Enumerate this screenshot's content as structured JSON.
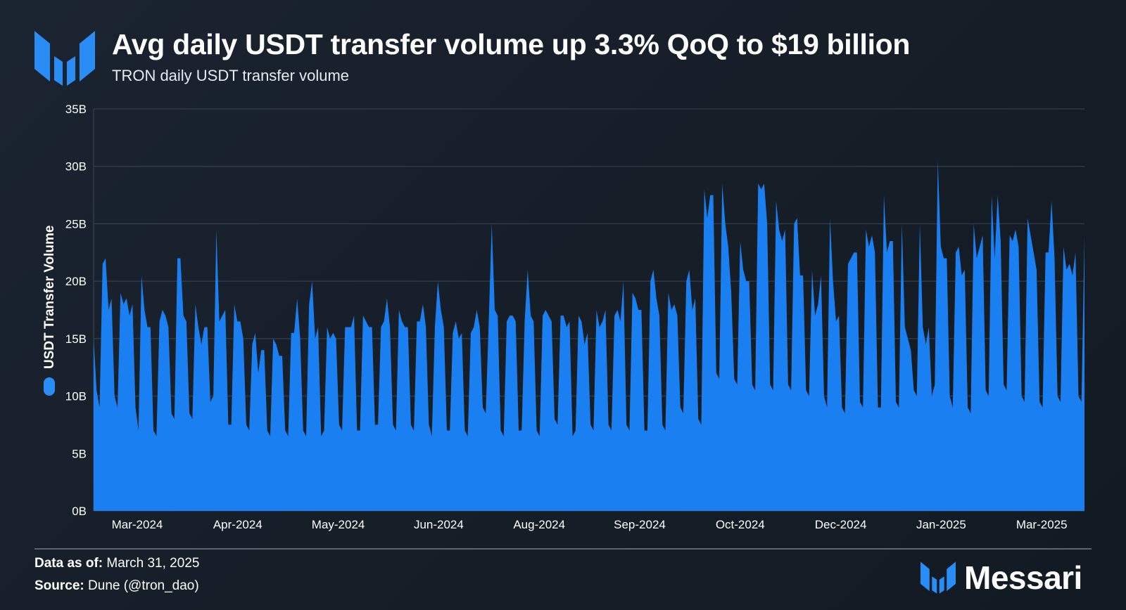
{
  "header": {
    "title": "Avg daily USDT transfer volume up 3.3% QoQ to $19 billion",
    "subtitle": "TRON daily USDT transfer volume"
  },
  "footer": {
    "data_as_of_label": "Data as of:",
    "data_as_of_value": "March 31, 2025",
    "source_label": "Source:",
    "source_value": "Dune (@tron_dao)",
    "brand": "Messari"
  },
  "colors": {
    "series": "#1a80f2",
    "grid": "#3a4654",
    "axis_text": "#ffffff",
    "logo": "#2a8cf5"
  },
  "icons": {
    "top_logo": "messari-logo-icon",
    "brand_logo": "messari-logo-icon"
  },
  "chart_data": {
    "type": "area",
    "title": "Avg daily USDT transfer volume up 3.3% QoQ to $19 billion",
    "subtitle": "TRON daily USDT transfer volume",
    "xlabel": "",
    "ylabel": "USDT Transfer Volume",
    "ylim": [
      0,
      35
    ],
    "y_unit": "B",
    "y_ticks": [
      "0B",
      "5B",
      "10B",
      "15B",
      "20B",
      "25B",
      "30B",
      "35B"
    ],
    "x_ticks": [
      "Mar-2024",
      "Apr-2024",
      "May-2024",
      "Jun-2024",
      "Aug-2024",
      "Sep-2024",
      "Oct-2024",
      "Dec-2024",
      "Jan-2025",
      "Mar-2025"
    ],
    "legend": [
      {
        "name": "USDT Transfer Volume",
        "position": "left-vertical"
      }
    ],
    "grid": true,
    "series": [
      {
        "name": "USDT Transfer Volume",
        "values": [
          15.0,
          10.5,
          9.0,
          21.5,
          22.0,
          17.5,
          18.5,
          10.0,
          9.0,
          19.0,
          18.0,
          18.5,
          17.0,
          18.0,
          9.0,
          7.0,
          20.5,
          17.5,
          16.0,
          16.0,
          7.0,
          6.5,
          16.5,
          17.5,
          17.0,
          16.0,
          8.5,
          8.0,
          22.0,
          22.0,
          17.0,
          16.5,
          8.5,
          8.0,
          18.0,
          16.0,
          14.5,
          16.0,
          16.0,
          9.5,
          10.0,
          24.5,
          16.5,
          17.0,
          17.5,
          7.5,
          7.5,
          18.0,
          16.5,
          16.5,
          15.0,
          7.5,
          7.0,
          14.5,
          15.5,
          12.0,
          14.0,
          14.0,
          7.0,
          6.5,
          15.0,
          14.5,
          13.5,
          13.5,
          7.0,
          6.5,
          15.5,
          15.5,
          18.5,
          15.0,
          7.0,
          6.5,
          18.0,
          20.0,
          15.0,
          16.0,
          6.5,
          7.0,
          16.0,
          15.0,
          15.5,
          15.0,
          7.5,
          7.0,
          16.0,
          16.0,
          16.0,
          17.0,
          7.0,
          7.0,
          17.0,
          16.5,
          16.0,
          16.0,
          7.5,
          7.5,
          16.0,
          16.5,
          18.5,
          16.0,
          7.5,
          7.0,
          17.5,
          16.5,
          16.0,
          16.0,
          7.5,
          7.0,
          16.5,
          16.5,
          18.0,
          16.0,
          7.5,
          6.5,
          16.0,
          20.0,
          17.5,
          16.0,
          7.0,
          7.0,
          15.5,
          16.5,
          15.0,
          15.5,
          7.0,
          6.5,
          15.5,
          16.0,
          17.5,
          16.0,
          9.0,
          8.5,
          16.5,
          25.0,
          17.5,
          17.0,
          7.0,
          6.5,
          16.5,
          17.0,
          17.0,
          16.5,
          7.0,
          7.0,
          16.5,
          21.0,
          17.0,
          16.5,
          7.0,
          6.5,
          17.0,
          17.5,
          17.0,
          16.5,
          8.0,
          7.5,
          17.0,
          17.0,
          16.0,
          16.5,
          6.5,
          7.0,
          17.0,
          16.5,
          14.5,
          15.5,
          7.5,
          7.0,
          17.5,
          16.0,
          16.5,
          17.5,
          7.5,
          7.0,
          17.0,
          17.5,
          16.5,
          20.0,
          7.5,
          7.0,
          19.0,
          18.5,
          17.5,
          17.5,
          7.0,
          7.0,
          20.0,
          21.0,
          18.5,
          17.0,
          7.5,
          7.0,
          19.0,
          17.5,
          18.0,
          17.0,
          9.0,
          8.5,
          20.0,
          21.0,
          17.5,
          18.5,
          8.0,
          7.5,
          28.0,
          25.5,
          27.5,
          27.5,
          12.0,
          11.5,
          28.5,
          25.0,
          23.0,
          19.0,
          11.5,
          11.0,
          23.5,
          21.0,
          20.0,
          20.0,
          11.0,
          10.5,
          28.5,
          28.0,
          28.5,
          25.0,
          11.0,
          10.5,
          27.0,
          24.5,
          23.5,
          24.5,
          11.0,
          10.5,
          25.0,
          25.5,
          20.5,
          20.5,
          10.5,
          10.0,
          21.0,
          17.0,
          18.0,
          20.5,
          10.0,
          9.0,
          25.5,
          20.0,
          16.5,
          17.0,
          9.0,
          8.5,
          21.5,
          22.0,
          22.5,
          22.5,
          9.5,
          9.0,
          24.5,
          23.0,
          24.0,
          22.5,
          9.0,
          9.0,
          27.5,
          22.5,
          23.5,
          23.5,
          9.5,
          9.0,
          25.0,
          16.0,
          15.0,
          14.0,
          10.5,
          10.0,
          25.0,
          16.0,
          14.5,
          16.0,
          10.0,
          11.0,
          30.5,
          23.0,
          22.0,
          22.0,
          10.0,
          9.0,
          22.5,
          23.0,
          20.5,
          21.0,
          9.0,
          8.5,
          25.0,
          22.0,
          23.0,
          24.0,
          10.5,
          10.0,
          27.5,
          22.0,
          27.5,
          23.5,
          11.0,
          10.5,
          24.0,
          23.5,
          24.5,
          23.0,
          10.0,
          9.5,
          25.5,
          24.0,
          22.5,
          21.0,
          9.5,
          9.0,
          22.5,
          22.5,
          27.0,
          22.0,
          10.0,
          9.5,
          23.0,
          21.0,
          21.5,
          20.5,
          22.5,
          10.0,
          9.5,
          24.0
        ]
      }
    ]
  }
}
